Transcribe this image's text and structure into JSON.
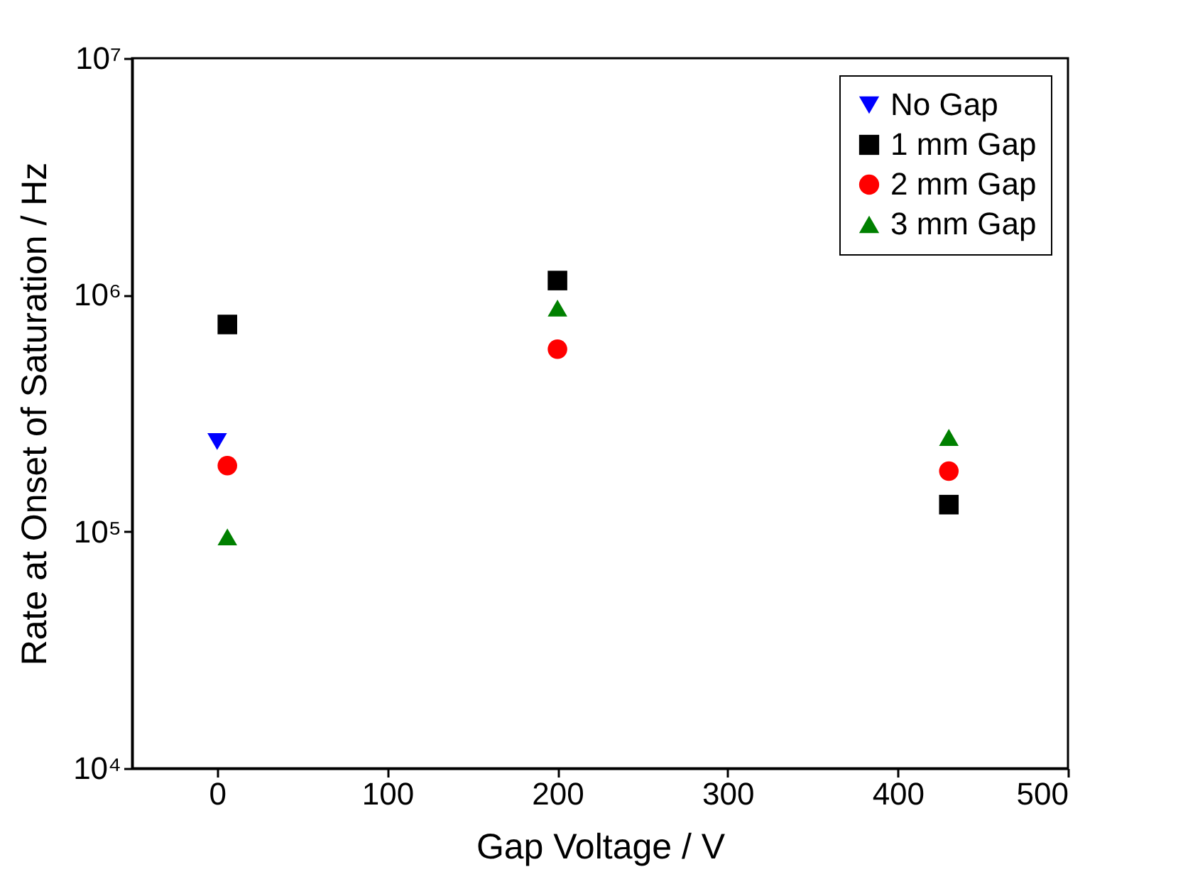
{
  "chart_data": {
    "type": "scatter",
    "xlabel": "Gap Voltage / V",
    "ylabel": "Rate at Onset of Saturation / Hz",
    "log": "y",
    "legend": "top right",
    "grid": false,
    "xlim": [
      -50,
      500
    ],
    "xticks": [
      0,
      100,
      200,
      300,
      400,
      500
    ],
    "ylim": [
      10000,
      10000000
    ],
    "yticks": [
      {
        "value": 10000,
        "label": "10⁴"
      },
      {
        "value": 100000,
        "label": "10⁵"
      },
      {
        "value": 1000000,
        "label": "10⁶"
      },
      {
        "value": 10000000,
        "label": "10⁷"
      }
    ],
    "series": [
      {
        "name": "No Gap",
        "color": "#0000ff",
        "marker": "triangle-down",
        "x": [
          0
        ],
        "values": [
          240000
        ]
      },
      {
        "name": "1 mm Gap",
        "color": "#000000",
        "marker": "square",
        "x": [
          6,
          200,
          430
        ],
        "values": [
          750000,
          1150000,
          130000
        ]
      },
      {
        "name": "2 mm Gap",
        "color": "#ff0000",
        "marker": "circle",
        "x": [
          6,
          200,
          430
        ],
        "values": [
          190000,
          590000,
          180000
        ]
      },
      {
        "name": "3 mm Gap",
        "color": "#008000",
        "marker": "triangle",
        "x": [
          6,
          200,
          430
        ],
        "values": [
          95000,
          880000,
          250000
        ]
      }
    ]
  }
}
